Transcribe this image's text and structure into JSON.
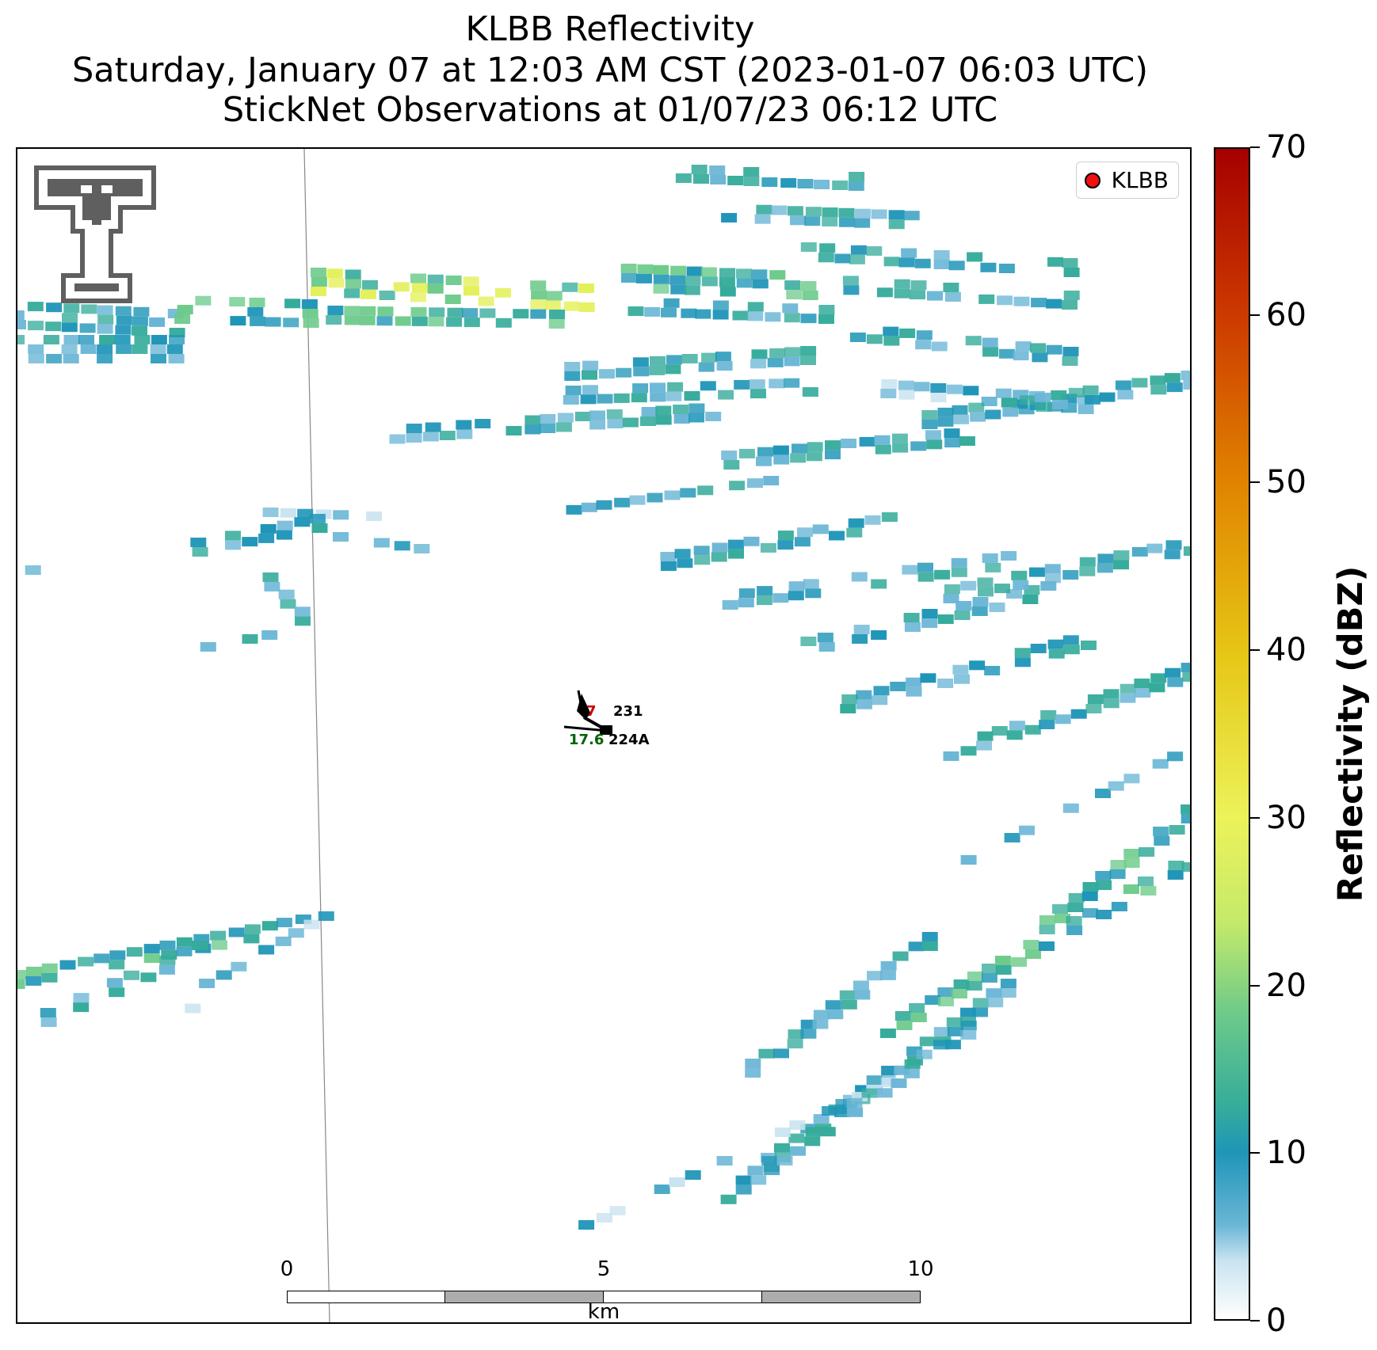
{
  "title": {
    "line1": "KLBB Reflectivity",
    "line2": "Saturday, January 07 at 12:03 AM CST (2023-01-07 06:03 UTC)",
    "line3": "StickNet Observations at 01/07/23 06:12 UTC"
  },
  "legend": {
    "label": "KLBB",
    "marker_color": "#ee1111"
  },
  "logo": {
    "name": "texas-tech-double-t-logo",
    "color": "#5f5f5f"
  },
  "stations": [
    {
      "id": "231",
      "temp": "7",
      "temp_color": "#cc0000"
    },
    {
      "id": "224A",
      "dewpoint": "17.6",
      "dewpoint_color": "#006400"
    }
  ],
  "scalebar": {
    "ticks": [
      "0",
      "5",
      "10"
    ],
    "unit": "km"
  },
  "colorbar": {
    "label": "Reflectivity (dBZ)",
    "min": 0,
    "max": 70,
    "ticks": [
      "0",
      "10",
      "20",
      "30",
      "40",
      "50",
      "60",
      "70"
    ]
  },
  "colors": {
    "light": "#c9e3f0",
    "mid": "#6bb6d6",
    "teal": "#1f95b8",
    "green": "#35ab9b",
    "lightgreen": "#6cca8a",
    "yellow": "#e4f05a"
  }
}
